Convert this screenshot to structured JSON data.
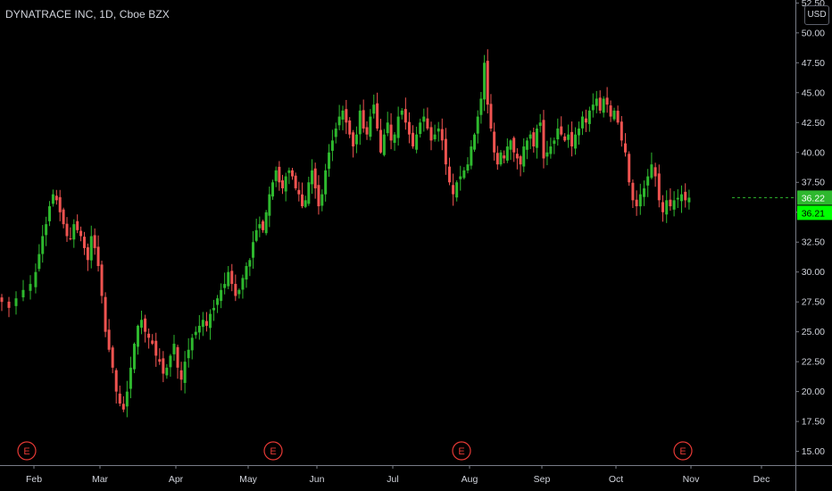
{
  "header": {
    "title": "DYNATRACE INC, 1D, Cboe BZX",
    "currency": "USD"
  },
  "colors": {
    "background": "#000000",
    "up": "#26a69a",
    "up_bright": "#2eb82e",
    "down": "#ef5350",
    "axis_text": "#d1d4dc",
    "axis_line": "#787b86",
    "last_price_bg": "#2eb82e",
    "price_box_bg": "#00ff00",
    "earnings": "#e53935"
  },
  "chart_data": {
    "type": "candlestick",
    "title": "DYNATRACE INC, 1D, Cboe BZX",
    "y_ticks": [
      "15.00",
      "17.50",
      "20.00",
      "22.50",
      "25.00",
      "27.50",
      "30.00",
      "32.50",
      "35.00",
      "37.50",
      "40.00",
      "42.50",
      "45.00",
      "47.50",
      "50.00",
      "52.50"
    ],
    "ylim": [
      14.0,
      52.6
    ],
    "x_ticks": [
      "Feb",
      "Mar",
      "Apr",
      "May",
      "Jun",
      "Jul",
      "Aug",
      "Sep",
      "Oct",
      "Nov",
      "Dec"
    ],
    "last_price_labels": [
      "36.22",
      "36.21"
    ],
    "earnings_label": "E",
    "earnings_months": [
      "Feb",
      "May",
      "Aug",
      "Nov"
    ],
    "close_series": [
      {
        "month": "Jan",
        "closes": [
          28.0,
          27.5,
          27.0,
          27.8,
          28.5,
          29.0
        ]
      },
      {
        "month": "Feb",
        "closes": [
          30.0,
          31.5,
          33.0,
          34.0,
          35.5,
          36.5,
          36.0,
          35.0,
          34.0,
          33.0,
          32.8,
          34.0,
          33.5,
          33.0,
          32.0,
          31.0,
          33.0,
          32.0,
          30.5
        ]
      },
      {
        "month": "Mar",
        "closes": [
          28.0,
          25.0,
          23.5,
          22.0,
          20.0,
          19.0,
          18.5,
          20.0,
          22.0,
          24.0,
          25.5,
          26.0,
          25.0,
          24.5,
          24.0,
          23.0,
          22.5,
          21.5,
          22.0,
          23.0,
          24.0
        ]
      },
      {
        "month": "Apr",
        "closes": [
          22.0,
          21.0,
          22.5,
          23.5,
          24.5,
          25.0,
          25.5,
          26.0,
          25.5,
          26.5,
          27.0,
          27.8,
          28.5,
          29.0,
          30.0,
          29.0,
          28.0,
          28.5,
          29.5,
          30.5
        ]
      },
      {
        "month": "May",
        "closes": [
          31.0,
          32.5,
          33.5,
          34.0,
          33.5,
          35.0,
          36.5,
          37.5,
          38.5,
          37.5,
          37.0,
          38.0,
          38.5,
          38.0,
          37.0,
          36.5,
          35.5,
          36.0,
          37.5,
          38.5,
          37.0
        ]
      },
      {
        "month": "Jun",
        "closes": [
          35.5,
          36.5,
          38.5,
          40.0,
          41.0,
          42.0,
          43.0,
          43.5,
          42.5,
          41.5,
          40.5,
          41.5,
          43.5,
          42.0,
          41.5,
          43.0,
          44.0,
          42.0,
          40.0,
          41.5,
          42.5,
          41.0
        ]
      },
      {
        "month": "Jul",
        "closes": [
          41.5,
          43.0,
          43.5,
          42.5,
          41.5,
          40.5,
          41.5,
          42.5,
          43.0,
          42.0,
          41.0,
          41.5,
          42.0,
          41.0,
          39.0,
          37.5,
          36.5,
          37.5,
          38.0,
          38.5,
          39.0
        ]
      },
      {
        "month": "Aug",
        "closes": [
          40.5,
          41.5,
          43.0,
          44.5,
          47.5,
          44.0,
          42.0,
          40.0,
          39.0,
          40.0,
          39.5,
          40.5,
          41.0,
          40.0,
          39.5,
          39.0,
          40.5,
          41.0,
          41.5,
          40.5,
          42.0,
          42.5
        ]
      },
      {
        "month": "Sep",
        "closes": [
          39.5,
          40.0,
          40.5,
          41.0,
          42.0,
          41.5,
          41.0,
          41.5,
          40.5,
          41.5,
          42.0,
          43.0,
          42.5,
          43.5,
          44.0,
          44.5,
          43.5,
          44.5,
          44.0,
          43.0,
          43.5
        ]
      },
      {
        "month": "Oct",
        "closes": [
          42.5,
          41.0,
          40.0,
          37.5,
          36.0,
          35.5,
          36.5,
          37.0,
          38.0,
          39.0,
          38.0,
          36.0,
          35.0,
          36.0,
          35.5,
          36.0,
          36.2,
          36.5,
          36.0,
          36.22
        ]
      }
    ]
  }
}
